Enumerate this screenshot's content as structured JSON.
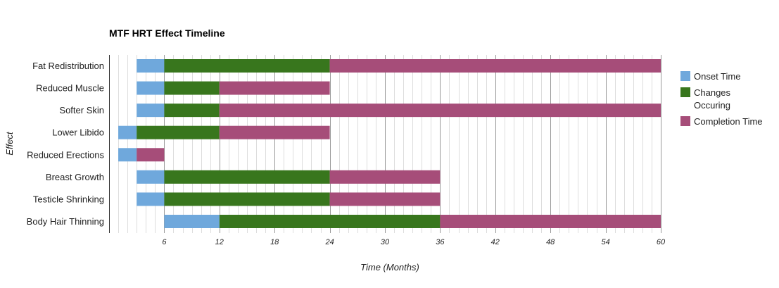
{
  "chart_data": {
    "type": "bar",
    "orientation": "horizontal",
    "stacked": true,
    "title": "MTF HRT Effect Timeline",
    "xlabel": "Time (Months)",
    "ylabel": "Effect",
    "xlim": [
      0,
      60
    ],
    "xticks": [
      6,
      12,
      18,
      24,
      30,
      36,
      42,
      48,
      54,
      60
    ],
    "minor_grid_step": 1,
    "grid": true,
    "legend_position": "right",
    "categories": [
      "Fat Redistribution",
      "Reduced Muscle",
      "Softer Skin",
      "Lower Libido",
      "Reduced Erections",
      "Breast Growth",
      "Testicle Shrinking",
      "Body Hair Thinning"
    ],
    "base": [
      3,
      3,
      3,
      1,
      1,
      3,
      3,
      6
    ],
    "series": [
      {
        "name": "Onset Time",
        "color": "#6fa8dc",
        "values": [
          3,
          3,
          3,
          2,
          2,
          3,
          3,
          6
        ]
      },
      {
        "name": "Changes Occuring",
        "color": "#38761d",
        "values": [
          18,
          6,
          6,
          9,
          0,
          18,
          18,
          24
        ]
      },
      {
        "name": "Completion Time",
        "color": "#a64d79",
        "values": [
          36,
          12,
          48,
          12,
          3,
          12,
          12,
          24
        ]
      }
    ]
  }
}
